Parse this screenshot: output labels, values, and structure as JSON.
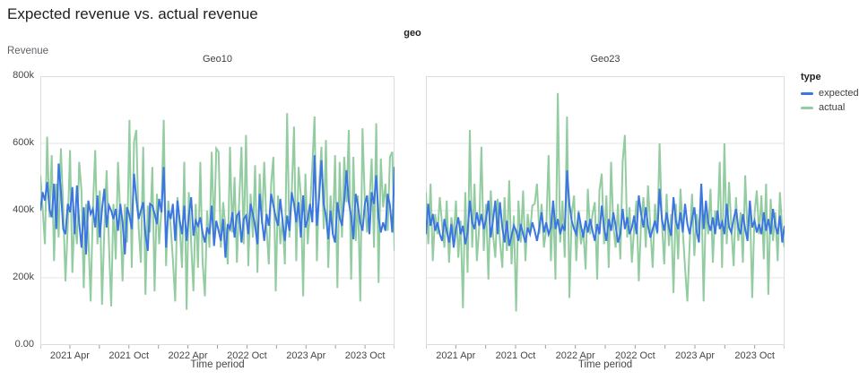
{
  "title": "Expected revenue vs. actual revenue",
  "facet": {
    "label": "geo"
  },
  "axes": {
    "y_title": "Revenue",
    "x_title": "Time period",
    "y_ticks": [
      "800k",
      "600k",
      "400k",
      "200k",
      "0.00"
    ],
    "y_tick_values": [
      800,
      600,
      400,
      200,
      0
    ],
    "x_tick_labels": [
      "2021 Apr",
      "2021 Oct",
      "2022 Apr",
      "2022 Oct",
      "2023 Apr",
      "2023 Oct"
    ]
  },
  "legend": {
    "title": "type",
    "items": [
      {
        "label": "expected",
        "color": "#3b76e1"
      },
      {
        "label": "actual",
        "color": "#93cca1"
      }
    ]
  },
  "colors": {
    "grid": "#e4e4e4",
    "panel_border": "#dadce0",
    "tick_mark": "#9aa0a6",
    "tick_text": "#444746"
  },
  "chart_data": {
    "type": "line",
    "title": "Expected revenue vs. actual revenue",
    "facet_field": "geo",
    "xlabel": "Time period",
    "ylabel": "Revenue",
    "y_unit": "thousands",
    "ylim": [
      0,
      800
    ],
    "grid": true,
    "legend_position": "right",
    "x_start": "2021-01",
    "x_end": "2023-12",
    "x_frequency": "weekly",
    "x_label_month_offsets": [
      3,
      9,
      15,
      21,
      27,
      33
    ],
    "x_minor_tick_month_step": 3,
    "x_total_months": 36,
    "panels": [
      {
        "title": "Geo10",
        "series": [
          {
            "name": "expected",
            "values": [
              400,
              455,
              430,
              485,
              405,
              380,
              480,
              345,
              540,
              460,
              345,
              330,
              420,
              395,
              470,
              330,
              475,
              365,
              290,
              410,
              270,
              430,
              390,
              405,
              350,
              445,
              320,
              405,
              465,
              350,
              415,
              400,
              375,
              405,
              340,
              420,
              365,
              270,
              410,
              385,
              345,
              510,
              435,
              375,
              400,
              425,
              330,
              280,
              420,
              415,
              390,
              360,
              435,
              395,
              530,
              290,
              400,
              375,
              420,
              310,
              430,
              370,
              330,
              415,
              310,
              385,
              440,
              325,
              370,
              355,
              380,
              335,
              305,
              350,
              330,
              415,
              295,
              370,
              340,
              310,
              375,
              260,
              360,
              345,
              395,
              320,
              385,
              395,
              305,
              375,
              385,
              330,
              420,
              390,
              355,
              300,
              450,
              370,
              310,
              390,
              355,
              450,
              415,
              380,
              355,
              435,
              370,
              310,
              385,
              340,
              455,
              420,
              365,
              425,
              320,
              445,
              350,
              375,
              420,
              365,
              565,
              355,
              440,
              550,
              420,
              385,
              315,
              400,
              330,
              305,
              425,
              380,
              355,
              430,
              520,
              425,
              385,
              315,
              450,
              415,
              365,
              340,
              420,
              445,
              330,
              455,
              420,
              505,
              380,
              335,
              365,
              340,
              450,
              415,
              335,
              530
            ]
          },
          {
            "name": "actual",
            "values": [
              505,
              410,
              300,
              620,
              380,
              565,
              250,
              480,
              320,
              585,
              410,
              190,
              355,
              580,
              215,
              390,
              300,
              545,
              460,
              170,
              420,
              330,
              130,
              405,
              580,
              300,
              460,
              120,
              350,
              520,
              300,
              115,
              420,
              255,
              545,
              385,
              190,
              420,
              305,
              670,
              230,
              605,
              640,
              350,
              245,
              590,
              150,
              415,
              335,
              530,
              160,
              450,
              300,
              405,
              670,
              235,
              430,
              355,
              255,
              130,
              440,
              350,
              230,
              545,
              105,
              455,
              305,
              160,
              420,
              230,
              545,
              250,
              145,
              400,
              290,
              575,
              330,
              585,
              575,
              290,
              425,
              350,
              240,
              590,
              335,
              500,
              245,
              425,
              590,
              300,
              625,
              235,
              450,
              320,
              535,
              215,
              510,
              360,
              545,
              350,
              240,
              480,
              560,
              160,
              445,
              300,
              375,
              240,
              690,
              320,
              445,
              650,
              250,
              530,
              445,
              145,
              510,
              300,
              405,
              530,
              680,
              250,
              475,
              590,
              345,
              610,
              230,
              445,
              330,
              565,
              170,
              545,
              320,
              560,
              425,
              640,
              195,
              560,
              310,
              445,
              130,
              645,
              425,
              335,
              425,
              555,
              290,
              660,
              185,
              555,
              410,
              480,
              340,
              560,
              575,
              280
            ]
          }
        ]
      },
      {
        "title": "Geo23",
        "series": [
          {
            "name": "expected",
            "values": [
              330,
              420,
              355,
              390,
              340,
              365,
              330,
              310,
              375,
              340,
              305,
              360,
              290,
              345,
              380,
              330,
              355,
              300,
              335,
              430,
              365,
              345,
              395,
              355,
              390,
              345,
              375,
              430,
              320,
              370,
              430,
              330,
              425,
              350,
              305,
              370,
              295,
              325,
              355,
              340,
              310,
              360,
              330,
              305,
              350,
              330,
              365,
              340,
              310,
              350,
              395,
              335,
              365,
              330,
              350,
              430,
              345,
              375,
              330,
              355,
              340,
              520,
              420,
              370,
              345,
              330,
              395,
              355,
              320,
              370,
              335,
              375,
              340,
              310,
              360,
              330,
              415,
              350,
              310,
              375,
              340,
              395,
              355,
              305,
              330,
              405,
              345,
              380,
              330,
              350,
              385,
              330,
              445,
              390,
              350,
              410,
              355,
              320,
              345,
              370,
              335,
              465,
              375,
              340,
              395,
              350,
              325,
              440,
              370,
              345,
              395,
              335,
              420,
              360,
              330,
              375,
              410,
              340,
              305,
              480,
              345,
              430,
              365,
              340,
              380,
              330,
              400,
              345,
              365,
              330,
              420,
              350,
              335,
              375,
              405,
              350,
              330,
              390,
              345,
              310,
              430,
              350,
              370,
              335,
              360,
              330,
              395,
              340,
              375,
              330,
              405,
              355,
              330,
              385,
              305,
              355
            ]
          },
          {
            "name": "actual",
            "values": [
              455,
              300,
              480,
              250,
              390,
              330,
              440,
              355,
              290,
              430,
              245,
              380,
              320,
              430,
              260,
              370,
              110,
              455,
              215,
              640,
              290,
              480,
              250,
              350,
              590,
              280,
              420,
              195,
              460,
              330,
              260,
              435,
              310,
              230,
              440,
              280,
              490,
              240,
              385,
              100,
              430,
              305,
              460,
              250,
              390,
              330,
              415,
              420,
              480,
              330,
              420,
              290,
              345,
              565,
              250,
              430,
              195,
              750,
              305,
              430,
              260,
              680,
              140,
              390,
              445,
              250,
              400,
              300,
              345,
              225,
              465,
              330,
              390,
              425,
              195,
              460,
              510,
              300,
              445,
              230,
              545,
              355,
              290,
              420,
              255,
              545,
              625,
              320,
              410,
              245,
              350,
              430,
              190,
              365,
              440,
              290,
              475,
              350,
              230,
              420,
              330,
              600,
              365,
              240,
              450,
              295,
              390,
              155,
              420,
              255,
              465,
              340,
              230,
              130,
              305,
              450,
              265,
              390,
              335,
              480,
              130,
              420,
              330,
              465,
              245,
              400,
              355,
              545,
              230,
              600,
              300,
              485,
              350,
              235,
              440,
              310,
              395,
              245,
              505,
              330,
              425,
              140,
              390,
              460,
              330,
              445,
              255,
              480,
              150,
              435,
              310,
              395,
              250,
              455,
              340,
              290
            ]
          }
        ]
      }
    ]
  }
}
